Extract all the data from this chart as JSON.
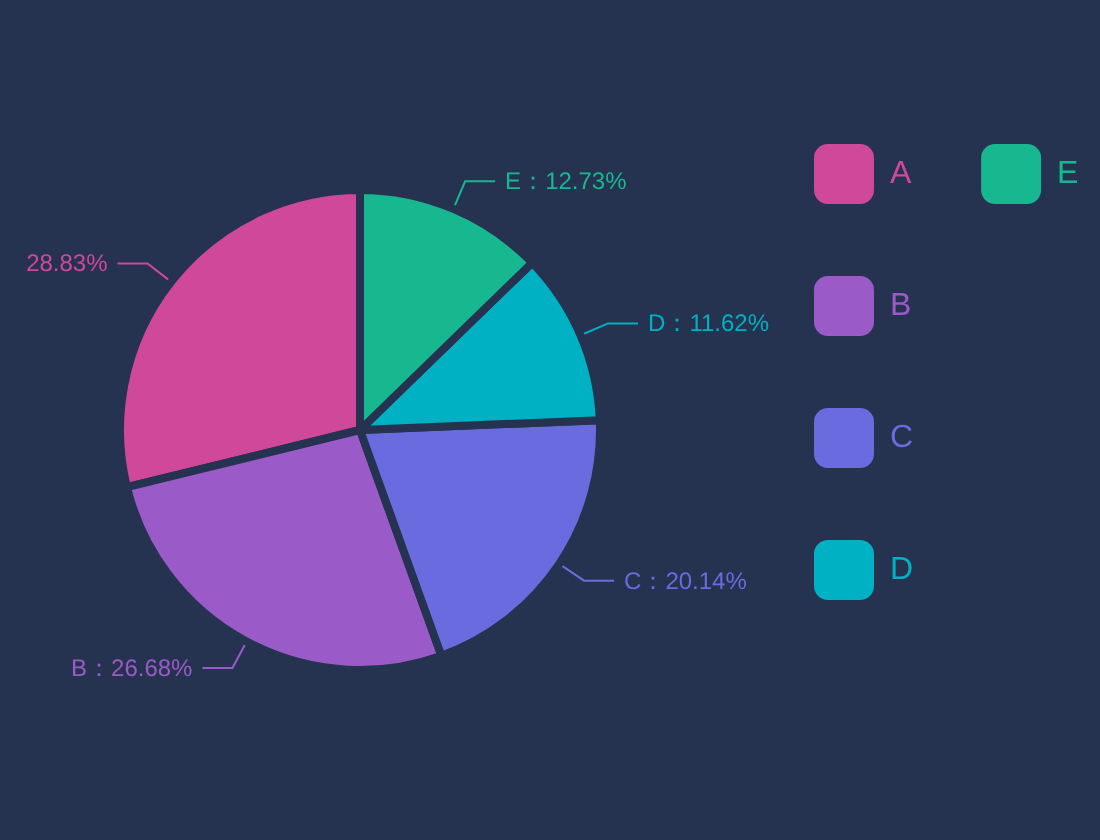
{
  "chart_data": {
    "type": "pie",
    "categories": [
      "A",
      "B",
      "C",
      "D",
      "E"
    ],
    "values": [
      28.83,
      26.68,
      20.14,
      11.62,
      12.73
    ],
    "colors": [
      "#d0489a",
      "#9a5ac8",
      "#6b6be0",
      "#00b1c4",
      "#17b890"
    ],
    "value_labels": [
      "28.83%",
      "B：26.68%",
      "C：20.14%",
      "D：11.62%",
      "E：12.73%"
    ],
    "legend": "right"
  }
}
